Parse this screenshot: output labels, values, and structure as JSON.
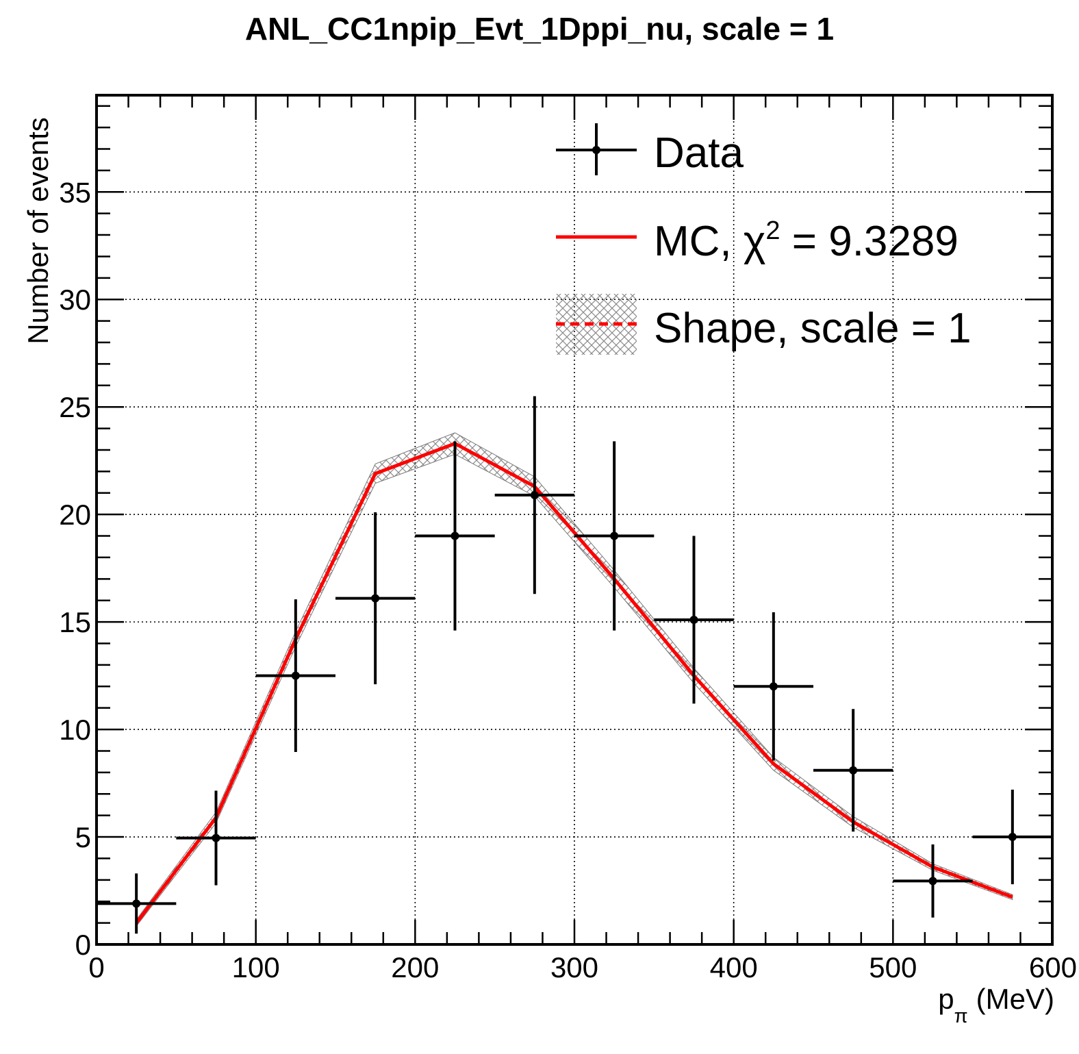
{
  "chart_data": {
    "type": "line",
    "title": "ANL_CC1npip_Evt_1Dppi_nu, scale = 1",
    "xlabel": {
      "main": "p",
      "sub": "π",
      "unit": "(MeV)"
    },
    "ylabel": "Number of events",
    "xlim": [
      0,
      600
    ],
    "ylim": [
      0,
      39.5
    ],
    "grid": true,
    "x_ticks": [
      "0",
      "100",
      "200",
      "300",
      "400",
      "500",
      "600"
    ],
    "y_ticks": [
      "0",
      "5",
      "10",
      "15",
      "20",
      "25",
      "30",
      "35"
    ],
    "legend_position": "top-right",
    "series": [
      {
        "name": "Data",
        "kind": "points-with-errors",
        "color": "#000000",
        "points": [
          {
            "x": 25,
            "xerr": 25,
            "y": 1.9,
            "yerr_low": 1.4,
            "yerr_high": 1.4
          },
          {
            "x": 75,
            "xerr": 25,
            "y": 4.95,
            "yerr_low": 2.2,
            "yerr_high": 2.2
          },
          {
            "x": 125,
            "xerr": 25,
            "y": 12.5,
            "yerr_low": 3.55,
            "yerr_high": 3.55
          },
          {
            "x": 175,
            "xerr": 25,
            "y": 16.1,
            "yerr_low": 4.0,
            "yerr_high": 4.0
          },
          {
            "x": 225,
            "xerr": 25,
            "y": 19.0,
            "yerr_low": 4.4,
            "yerr_high": 4.4
          },
          {
            "x": 275,
            "xerr": 25,
            "y": 20.9,
            "yerr_low": 4.6,
            "yerr_high": 4.6
          },
          {
            "x": 325,
            "xerr": 25,
            "y": 19.0,
            "yerr_low": 4.4,
            "yerr_high": 4.4
          },
          {
            "x": 375,
            "xerr": 25,
            "y": 15.1,
            "yerr_low": 3.9,
            "yerr_high": 3.9
          },
          {
            "x": 425,
            "xerr": 25,
            "y": 12.0,
            "yerr_low": 3.45,
            "yerr_high": 3.45
          },
          {
            "x": 475,
            "xerr": 25,
            "y": 8.1,
            "yerr_low": 2.85,
            "yerr_high": 2.85
          },
          {
            "x": 525,
            "xerr": 25,
            "y": 2.95,
            "yerr_low": 1.7,
            "yerr_high": 1.7
          },
          {
            "x": 575,
            "xerr": 25,
            "y": 5.0,
            "yerr_low": 2.2,
            "yerr_high": 2.2
          }
        ]
      },
      {
        "name": "MC",
        "legend_label": "MC, χ",
        "legend_sup": "2",
        "legend_value": " = 9.3289",
        "kind": "line",
        "color": "#ff0000",
        "x": [
          25,
          75,
          125,
          175,
          225,
          275,
          325,
          375,
          425,
          475,
          525,
          575
        ],
        "y": [
          1.0,
          5.9,
          14.2,
          21.9,
          23.3,
          21.3,
          17.0,
          12.5,
          8.4,
          5.7,
          3.6,
          2.2
        ]
      },
      {
        "name": "Shape, scale = 1",
        "kind": "dashed-line-with-band",
        "color": "#ff0000",
        "band_color": "#7a7a7a",
        "x": [
          25,
          75,
          125,
          175,
          225,
          275,
          325,
          375,
          425,
          475,
          525,
          575
        ],
        "y": [
          1.0,
          5.9,
          14.2,
          21.9,
          23.3,
          21.3,
          17.0,
          12.5,
          8.4,
          5.7,
          3.6,
          2.2
        ],
        "band_halfwidth": [
          0.15,
          0.25,
          0.35,
          0.45,
          0.5,
          0.45,
          0.4,
          0.35,
          0.3,
          0.25,
          0.15,
          0.12
        ]
      }
    ]
  }
}
